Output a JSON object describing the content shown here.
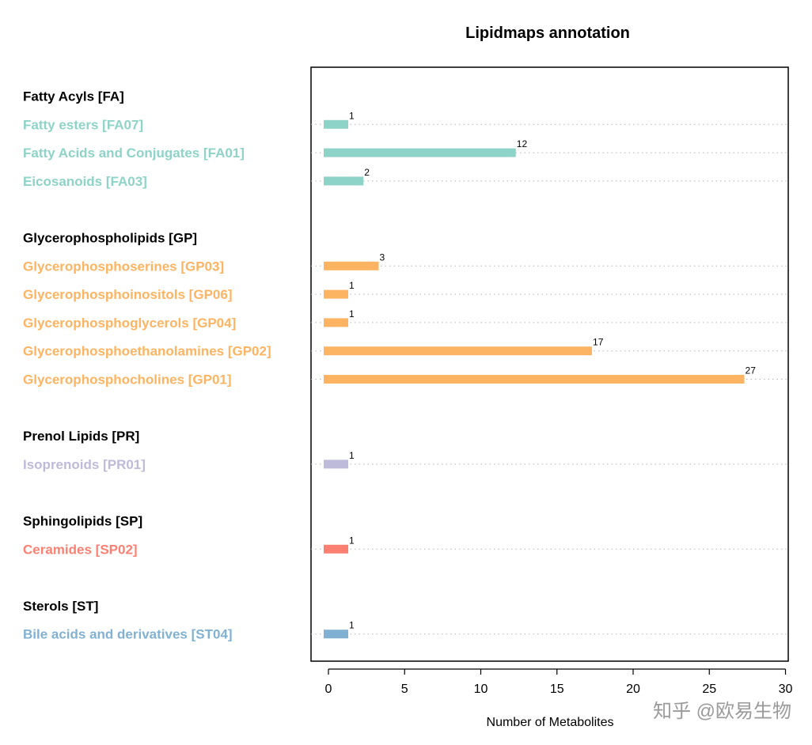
{
  "watermark": "知乎 @欧易生物",
  "chart_data": {
    "type": "bar",
    "orientation": "horizontal",
    "title": "Lipidmaps annotation",
    "xlabel": "Number of Metabolites",
    "ylabel": "",
    "xlim": [
      0,
      30
    ],
    "xticks": [
      "0",
      "5",
      "10",
      "15",
      "20",
      "25",
      "30"
    ],
    "grid": "dotted horizontal guides per category",
    "groups": [
      {
        "name": "Fatty Acyls [FA]",
        "color": "#8dd3c7",
        "items": [
          {
            "label": "Fatty esters [FA07]",
            "value": 1
          },
          {
            "label": "Fatty Acids and Conjugates [FA01]",
            "value": 12
          },
          {
            "label": "Eicosanoids [FA03]",
            "value": 2
          }
        ]
      },
      {
        "name": "Glycerophospholipids [GP]",
        "color": "#fdb462",
        "items": [
          {
            "label": "Glycerophosphoserines [GP03]",
            "value": 3
          },
          {
            "label": "Glycerophosphoinositols [GP06]",
            "value": 1
          },
          {
            "label": "Glycerophosphoglycerols [GP04]",
            "value": 1
          },
          {
            "label": "Glycerophosphoethanolamines [GP02]",
            "value": 17
          },
          {
            "label": "Glycerophosphocholines [GP01]",
            "value": 27
          }
        ]
      },
      {
        "name": "Prenol Lipids [PR]",
        "color": "#bebada",
        "items": [
          {
            "label": "Isoprenoids [PR01]",
            "value": 1
          }
        ]
      },
      {
        "name": "Sphingolipids [SP]",
        "color": "#fb8072",
        "items": [
          {
            "label": "Ceramides [SP02]",
            "value": 1
          }
        ]
      },
      {
        "name": "Sterols [ST]",
        "color": "#80b1d3",
        "items": [
          {
            "label": "Bile acids and derivatives [ST04]",
            "value": 1
          }
        ]
      }
    ]
  }
}
